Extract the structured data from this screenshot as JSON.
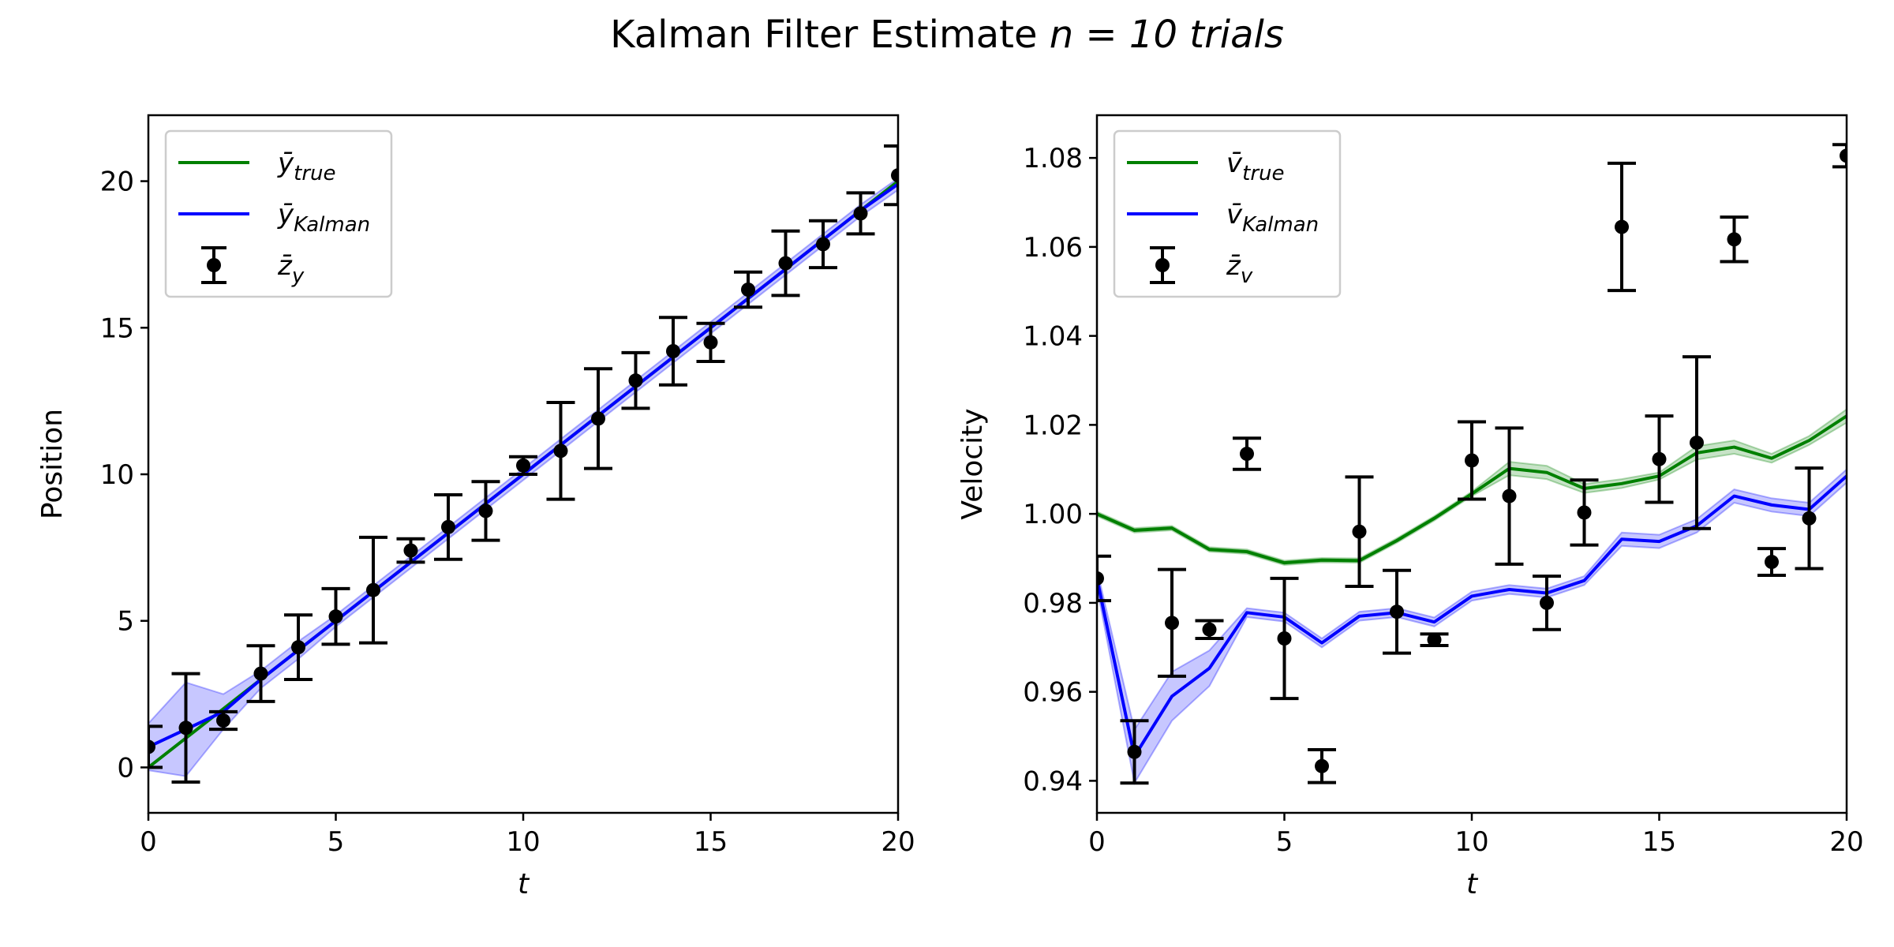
{
  "figure": {
    "title": "Kalman Filter Estimate",
    "title_math": "n = 10 trials"
  },
  "chart_data": [
    {
      "type": "line",
      "xlabel": "t",
      "ylabel": "Position",
      "xlim": [
        0,
        20
      ],
      "ylim": [
        -1.55,
        22.25
      ],
      "xticks": [
        0,
        5,
        10,
        15,
        20
      ],
      "yticks": [
        0,
        5,
        10,
        15,
        20
      ],
      "grid": false,
      "legend_position": "upper-left",
      "colors": {
        "true": "#008000",
        "kalman": "#0000ff",
        "kalman_band": "#0000ff",
        "meas": "#000000"
      },
      "legend": [
        {
          "kind": "line",
          "color": "#008000",
          "base": "ȳ",
          "sub": "true"
        },
        {
          "kind": "line",
          "color": "#0000ff",
          "base": "ȳ",
          "sub": "Kalman"
        },
        {
          "kind": "errorbar",
          "color": "#000000",
          "base": "z̄",
          "sub": "y"
        }
      ],
      "series": [
        {
          "key": "true",
          "x": [
            0,
            1,
            2,
            3,
            4,
            5,
            6,
            7,
            8,
            9,
            10,
            11,
            12,
            13,
            14,
            15,
            16,
            17,
            18,
            19,
            20
          ],
          "values": [
            0,
            1,
            2,
            3,
            4,
            5,
            6,
            7,
            8,
            9,
            10,
            11,
            12,
            13,
            14,
            15,
            16,
            17,
            18,
            19,
            20
          ]
        },
        {
          "key": "kalman",
          "x": [
            0,
            1,
            2,
            3,
            4,
            5,
            6,
            7,
            8,
            9,
            10,
            11,
            12,
            13,
            14,
            15,
            16,
            17,
            18,
            19,
            20
          ],
          "values": [
            0.7,
            1.3,
            1.9,
            3.0,
            4.0,
            5.0,
            6.0,
            7.0,
            8.0,
            9.0,
            10.0,
            11.0,
            12.0,
            13.0,
            14.0,
            15.0,
            16.0,
            17.0,
            18.0,
            19.0,
            19.9
          ],
          "band_lower": [
            -0.1,
            -0.3,
            1.3,
            2.7,
            3.7,
            4.8,
            5.8,
            6.8,
            7.8,
            8.8,
            9.8,
            10.8,
            11.8,
            12.8,
            13.8,
            14.8,
            15.8,
            16.8,
            17.8,
            18.8,
            19.7
          ],
          "band_upper": [
            1.5,
            2.9,
            2.5,
            3.3,
            4.3,
            5.2,
            6.2,
            7.2,
            8.2,
            9.2,
            10.2,
            11.2,
            12.2,
            13.2,
            14.2,
            15.2,
            16.2,
            17.2,
            18.2,
            19.2,
            20.1
          ]
        },
        {
          "key": "meas",
          "x": [
            0,
            1,
            2,
            3,
            4,
            5,
            6,
            7,
            8,
            9,
            10,
            11,
            12,
            13,
            14,
            15,
            16,
            17,
            18,
            19,
            20
          ],
          "values": [
            0.7,
            1.35,
            1.6,
            3.2,
            4.1,
            5.15,
            6.05,
            7.4,
            8.2,
            8.75,
            10.3,
            10.8,
            11.9,
            13.2,
            14.2,
            14.5,
            16.3,
            17.2,
            17.85,
            18.9,
            20.2
          ],
          "err": [
            0.7,
            1.85,
            0.3,
            0.95,
            1.1,
            0.95,
            1.8,
            0.4,
            1.1,
            1.0,
            0.3,
            1.65,
            1.7,
            0.95,
            1.15,
            0.65,
            0.6,
            1.1,
            0.8,
            0.7,
            1.0
          ]
        }
      ]
    },
    {
      "type": "line",
      "xlabel": "t",
      "ylabel": "Velocity",
      "xlim": [
        0,
        20
      ],
      "ylim": [
        0.9328,
        1.0896
      ],
      "xticks": [
        0,
        5,
        10,
        15,
        20
      ],
      "yticks": [
        0.94,
        0.96,
        0.98,
        1.0,
        1.02,
        1.04,
        1.06,
        1.08
      ],
      "ytick_labels": [
        "0.94",
        "0.96",
        "0.98",
        "1.00",
        "1.02",
        "1.04",
        "1.06",
        "1.08"
      ],
      "grid": false,
      "legend_position": "upper-left",
      "colors": {
        "true": "#008000",
        "kalman": "#0000ff",
        "meas": "#000000"
      },
      "legend": [
        {
          "kind": "line",
          "color": "#008000",
          "base": "v̄",
          "sub": "true"
        },
        {
          "kind": "line",
          "color": "#0000ff",
          "base": "v̄",
          "sub": "Kalman"
        },
        {
          "kind": "errorbar",
          "color": "#000000",
          "base": "z̄",
          "sub": "v"
        }
      ],
      "series": [
        {
          "key": "true",
          "x": [
            0,
            1,
            2,
            3,
            4,
            5,
            6,
            7,
            8,
            9,
            10,
            11,
            12,
            13,
            14,
            15,
            16,
            17,
            18,
            19,
            20
          ],
          "values": [
            1.0,
            0.9963,
            0.9968,
            0.992,
            0.9915,
            0.989,
            0.9896,
            0.9895,
            0.994,
            0.999,
            1.0045,
            1.0102,
            1.0093,
            1.0057,
            1.0068,
            1.0085,
            1.0137,
            1.015,
            1.0125,
            1.0165,
            1.022
          ],
          "band_lower": [
            0.9995,
            0.9958,
            0.9963,
            0.9915,
            0.991,
            0.9885,
            0.9891,
            0.989,
            0.9935,
            0.9985,
            1.004,
            1.0087,
            1.0078,
            1.0047,
            1.0058,
            1.0077,
            1.0122,
            1.0135,
            1.0115,
            1.0155,
            1.0205
          ],
          "band_upper": [
            1.0005,
            0.9968,
            0.9973,
            0.9925,
            0.992,
            0.9895,
            0.9901,
            0.99,
            0.9945,
            0.9995,
            1.005,
            1.0117,
            1.0108,
            1.0067,
            1.0078,
            1.0093,
            1.0152,
            1.0165,
            1.0135,
            1.0175,
            1.0235
          ]
        },
        {
          "key": "kalman",
          "x": [
            0,
            1,
            2,
            3,
            4,
            5,
            6,
            7,
            8,
            9,
            10,
            11,
            12,
            13,
            14,
            15,
            16,
            17,
            18,
            19,
            20
          ],
          "values": [
            0.9855,
            0.9455,
            0.959,
            0.9653,
            0.9778,
            0.9768,
            0.971,
            0.977,
            0.9778,
            0.9757,
            0.9815,
            0.983,
            0.9822,
            0.985,
            0.9943,
            0.9938,
            0.9973,
            1.004,
            1.002,
            1.001,
            1.0085
          ],
          "band_lower": [
            0.9835,
            0.9395,
            0.9535,
            0.9613,
            0.9768,
            0.9758,
            0.97,
            0.976,
            0.9768,
            0.9747,
            0.9805,
            0.982,
            0.9812,
            0.984,
            0.9928,
            0.9923,
            0.9958,
            1.0025,
            1.0005,
            0.9995,
            1.007
          ],
          "band_upper": [
            0.9875,
            0.9515,
            0.9645,
            0.9693,
            0.9788,
            0.9778,
            0.972,
            0.978,
            0.9788,
            0.9767,
            0.9825,
            0.984,
            0.9832,
            0.986,
            0.9958,
            0.9953,
            0.9988,
            1.0055,
            1.0035,
            1.0025,
            1.01
          ]
        },
        {
          "key": "meas",
          "x": [
            0,
            1,
            2,
            3,
            4,
            5,
            6,
            7,
            8,
            9,
            10,
            11,
            12,
            13,
            14,
            15,
            16,
            17,
            18,
            19,
            20
          ],
          "values": [
            0.9855,
            0.9465,
            0.9755,
            0.974,
            1.0135,
            0.972,
            0.9433,
            0.996,
            0.978,
            0.9717,
            1.012,
            1.004,
            0.98,
            1.0003,
            1.0645,
            1.0123,
            1.016,
            1.0617,
            0.9892,
            0.999,
            1.0805
          ],
          "err": [
            0.005,
            0.007,
            0.012,
            0.002,
            0.0035,
            0.0135,
            0.0037,
            0.0123,
            0.0093,
            0.0013,
            0.0087,
            0.0153,
            0.006,
            0.0073,
            0.0143,
            0.0097,
            0.0193,
            0.005,
            0.003,
            0.0113,
            0.0025
          ]
        }
      ]
    }
  ]
}
